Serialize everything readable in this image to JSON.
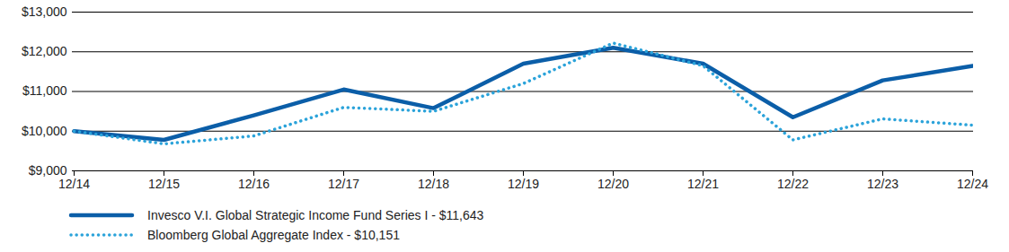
{
  "chart_data": {
    "type": "line",
    "x": [
      "12/14",
      "12/15",
      "12/16",
      "12/17",
      "12/18",
      "12/19",
      "12/20",
      "12/21",
      "12/22",
      "12/23",
      "12/24"
    ],
    "series": [
      {
        "name": "Invesco V.I. Global Strategic Income Fund Series I - $11,643",
        "color": "#0b5ea8",
        "line_style": "solid",
        "values": [
          10000,
          9780,
          10400,
          11050,
          10580,
          11700,
          12100,
          11700,
          10350,
          11280,
          11643
        ]
      },
      {
        "name": "Bloomberg Global Aggregate Index - $10,151",
        "color": "#2ba3da",
        "line_style": "dotted",
        "values": [
          10000,
          9680,
          9880,
          10600,
          10500,
          11200,
          12220,
          11650,
          9780,
          10310,
          10151
        ]
      }
    ],
    "ylim": [
      9000,
      13000
    ],
    "yticks": [
      {
        "value": 9000,
        "label": "$9,000"
      },
      {
        "value": 10000,
        "label": "$10,000"
      },
      {
        "value": 11000,
        "label": "$11,000"
      },
      {
        "value": 12000,
        "label": "$12,000"
      },
      {
        "value": 13000,
        "label": "$13,000"
      }
    ],
    "grid": true,
    "legend": "bottom"
  }
}
